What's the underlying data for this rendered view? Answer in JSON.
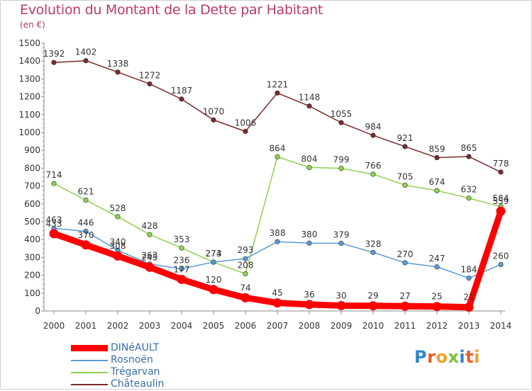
{
  "title": "Evolution du Montant de la Dette par Habitant",
  "unit": "(en €)",
  "logo": {
    "letters": [
      "P",
      "r",
      "o",
      "x",
      "i",
      "t",
      "i"
    ],
    "colors": [
      "#2f86c9",
      "#e85a2a",
      "#f2a12c",
      "#7fbf3c",
      "#2f86c9",
      "#e85a2a",
      "#f2a12c"
    ]
  },
  "chart_data": {
    "type": "line",
    "title": "Evolution du Montant de la Dette par Habitant",
    "ylabel": "(en €)",
    "x": [
      "2000",
      "2001",
      "2002",
      "2003",
      "2004",
      "2005",
      "2006",
      "2007",
      "2008",
      "2009",
      "2010",
      "2011",
      "2012",
      "2013",
      "2014"
    ],
    "ylim": [
      0,
      1500
    ],
    "yticks": [
      0,
      100,
      200,
      300,
      400,
      500,
      600,
      700,
      800,
      900,
      1000,
      1100,
      1200,
      1300,
      1400,
      1500
    ],
    "grid": false,
    "legend_position": "bottom-left",
    "series": [
      {
        "name": "Châteaulin",
        "color": "#7a2a2a",
        "width": 1.5,
        "values": [
          1392,
          1402,
          1338,
          1272,
          1187,
          1070,
          1006,
          1221,
          1148,
          1055,
          984,
          921,
          859,
          865,
          778
        ]
      },
      {
        "name": "Trégarvan",
        "color": "#8fd14f",
        "width": 1.5,
        "values": [
          714,
          621,
          528,
          428,
          353,
          273,
          208,
          864,
          804,
          799,
          766,
          705,
          674,
          632,
          584
        ]
      },
      {
        "name": "Rosnoën",
        "color": "#5b9bd5",
        "width": 1.5,
        "values": [
          463,
          446,
          340,
          263,
          236,
          274,
          293,
          388,
          380,
          379,
          328,
          270,
          247,
          184,
          260
        ]
      },
      {
        "name": "DINéAULT",
        "color": "#ff0000",
        "width": 9,
        "values": [
          433,
          370,
          308,
          245,
          177,
          120,
          74,
          45,
          36,
          30,
          29,
          27,
          25,
          21,
          559
        ]
      }
    ],
    "legend_order": [
      "DINéAULT",
      "Rosnoën",
      "Trégarvan",
      "Châteaulin"
    ]
  }
}
